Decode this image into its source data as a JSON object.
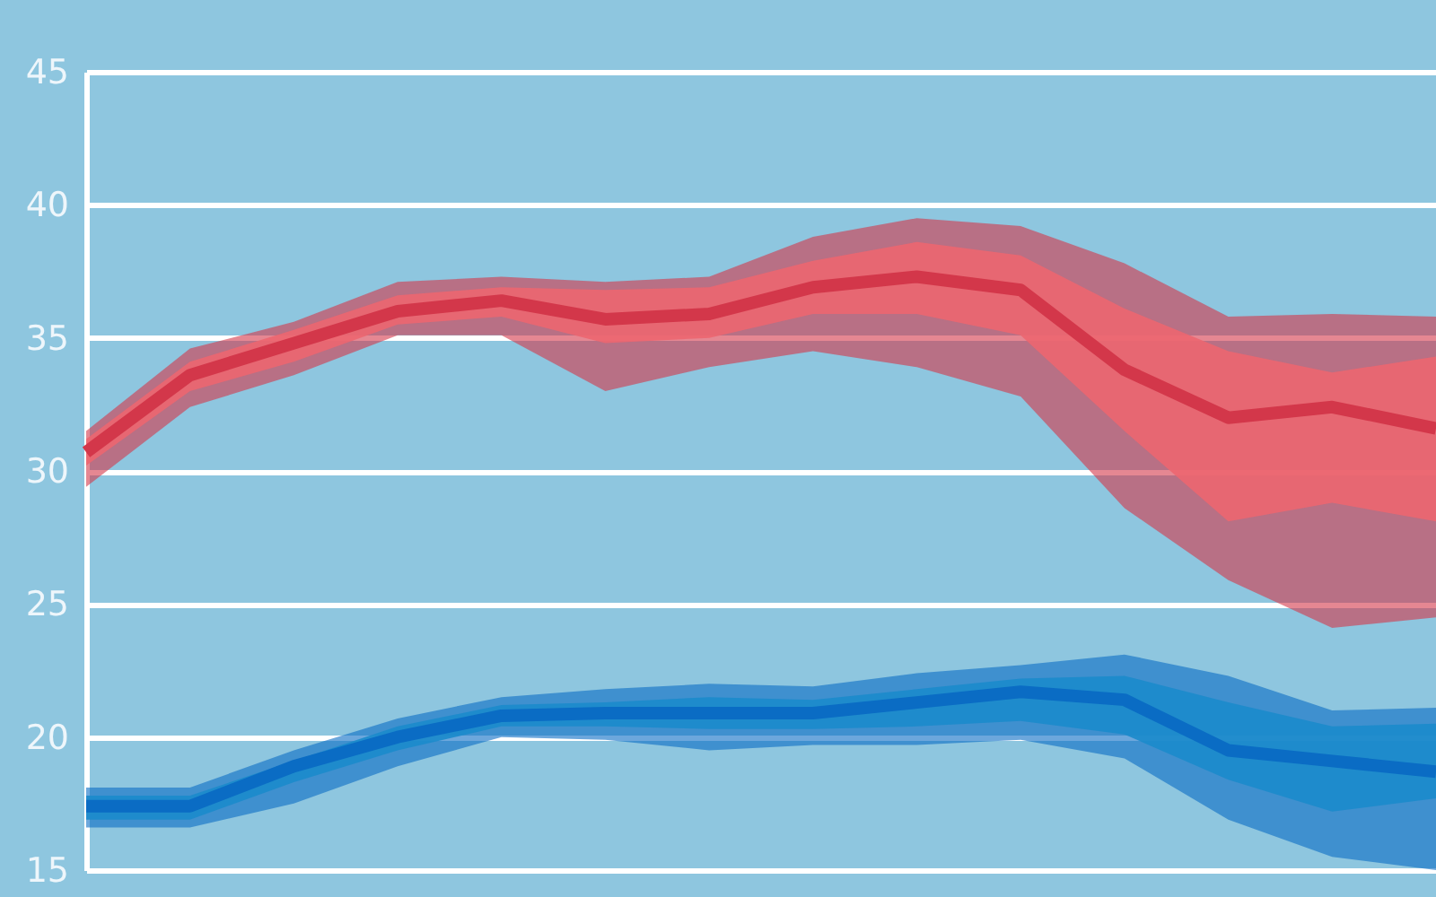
{
  "chart_data": {
    "type": "line",
    "categories": [
      null,
      null,
      null,
      null,
      null,
      null,
      null,
      null,
      null,
      null,
      null,
      null,
      null,
      null
    ],
    "ylim": [
      15,
      45
    ],
    "yticks": [
      15,
      20,
      25,
      30,
      35,
      40,
      45
    ],
    "grid": "y",
    "tick_labels": "y",
    "series": [
      {
        "type": "line",
        "color": "#d3374a",
        "values": [
          30.7,
          33.6,
          34.8,
          36.0,
          36.4,
          35.7,
          35.9,
          36.9,
          37.3,
          36.8,
          33.8,
          32.0,
          32.4,
          31.6
        ],
        "lower": [
          29.4,
          32.4,
          33.6,
          35.1,
          35.1,
          33.0,
          33.9,
          34.5,
          33.9,
          32.8,
          28.6,
          25.9,
          24.1,
          24.5
        ],
        "upper": [
          31.5,
          34.6,
          35.6,
          37.1,
          37.3,
          37.1,
          37.3,
          38.8,
          39.5,
          39.2,
          37.8,
          35.8,
          35.9,
          35.8
        ]
      },
      {
        "type": "line",
        "color": "#ec6670",
        "values": [
          null,
          null,
          null,
          null,
          null,
          null,
          null,
          null,
          null,
          null,
          null,
          null,
          null,
          null
        ],
        "lower": [
          30.2,
          33.0,
          34.1,
          35.5,
          35.8,
          34.8,
          35.0,
          35.9,
          35.9,
          35.1,
          31.5,
          28.1,
          28.8,
          28.1
        ],
        "upper": [
          31.2,
          34.1,
          35.3,
          36.6,
          36.9,
          36.8,
          36.9,
          37.9,
          38.6,
          38.1,
          36.1,
          34.5,
          33.7,
          34.3
        ]
      },
      {
        "type": "line",
        "color": "#0a6cc4",
        "values": [
          17.4,
          17.4,
          18.9,
          20.0,
          20.8,
          20.9,
          20.9,
          20.9,
          21.3,
          21.7,
          21.4,
          19.5,
          19.1,
          18.7
        ],
        "lower": [
          16.6,
          16.6,
          17.5,
          18.9,
          20.0,
          19.9,
          19.5,
          19.7,
          19.7,
          19.9,
          19.2,
          16.9,
          15.5,
          15.0
        ],
        "upper": [
          18.1,
          18.1,
          19.5,
          20.7,
          21.5,
          21.8,
          22.0,
          21.9,
          22.4,
          22.7,
          23.1,
          22.3,
          21.0,
          21.1
        ]
      },
      {
        "type": "line",
        "color": "#1b8bcb",
        "values": [
          null,
          null,
          null,
          null,
          null,
          null,
          null,
          null,
          null,
          null,
          null,
          null,
          null,
          null
        ],
        "lower": [
          16.9,
          16.9,
          18.3,
          19.5,
          20.4,
          20.4,
          20.3,
          20.3,
          20.4,
          20.6,
          20.1,
          18.4,
          17.2,
          17.7
        ],
        "upper": [
          17.8,
          17.8,
          19.1,
          20.4,
          21.2,
          21.3,
          21.5,
          21.4,
          21.8,
          22.2,
          22.3,
          21.3,
          20.4,
          20.5
        ]
      }
    ]
  }
}
